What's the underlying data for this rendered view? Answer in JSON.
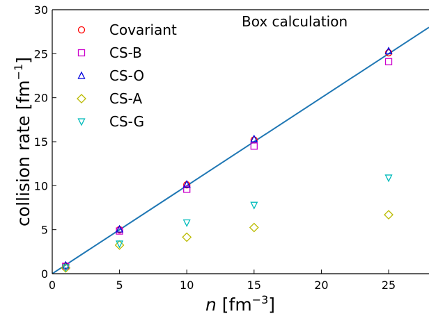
{
  "chart_data": {
    "type": "scatter",
    "annotation": "Box calculation",
    "xlabel": {
      "italic": "n",
      "unit_pre": " [fm",
      "unit_sup": "−3",
      "unit_post": "]"
    },
    "ylabel": {
      "text": "collision rate [fm",
      "unit_sup": "−1",
      "unit_post": "]"
    },
    "xlim": [
      0,
      28
    ],
    "ylim": [
      0,
      30
    ],
    "xticks": [
      0,
      5,
      10,
      15,
      20,
      25
    ],
    "yticks": [
      0,
      5,
      10,
      15,
      20,
      25,
      30
    ],
    "legend_position": "upper-left",
    "line": {
      "x": [
        0,
        28
      ],
      "y": [
        0,
        28
      ],
      "color": "#1f77b4"
    },
    "series": [
      {
        "name": "Covariant",
        "marker": "circle",
        "color": "#ff0000",
        "x": [
          1,
          5,
          10,
          15,
          25
        ],
        "y": [
          0.9,
          5.0,
          10.1,
          15.2,
          25.1
        ]
      },
      {
        "name": "CS-B",
        "marker": "square",
        "color": "#cc00cc",
        "x": [
          1,
          5,
          10,
          15,
          25
        ],
        "y": [
          0.85,
          4.85,
          9.6,
          14.5,
          24.1
        ]
      },
      {
        "name": "CS-O",
        "marker": "triangle-up",
        "color": "#0000dd",
        "x": [
          1,
          5,
          10,
          15,
          25
        ],
        "y": [
          0.95,
          5.05,
          10.15,
          15.3,
          25.3
        ]
      },
      {
        "name": "CS-A",
        "marker": "diamond",
        "color": "#bbbb00",
        "x": [
          1,
          5,
          10,
          15,
          25
        ],
        "y": [
          0.65,
          3.25,
          4.15,
          5.25,
          6.7
        ]
      },
      {
        "name": "CS-G",
        "marker": "triangle-down",
        "color": "#00bbbb",
        "x": [
          1,
          5,
          10,
          15,
          25
        ],
        "y": [
          0.7,
          3.4,
          5.8,
          7.8,
          10.9
        ]
      }
    ]
  }
}
